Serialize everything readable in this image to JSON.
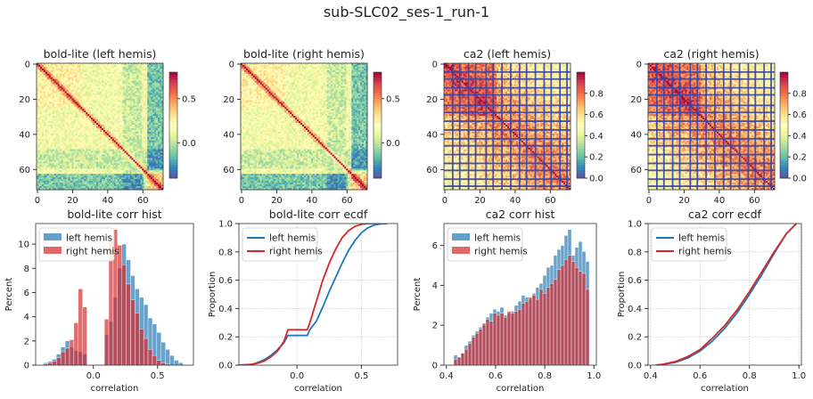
{
  "figure_title": "sub-SLC02_ses-1_run-1",
  "colors": {
    "left": "#1f77b4",
    "right": "#d62728",
    "grid_line": "#3a45a6"
  },
  "chart_data": [
    {
      "type": "heatmap",
      "title": "bold-lite (left hemis)",
      "size": 72,
      "x_ticks": [
        "0",
        "20",
        "40",
        "60"
      ],
      "y_ticks": [
        "0",
        "20",
        "40",
        "60"
      ],
      "colorbar": {
        "range": [
          -0.4,
          0.8
        ],
        "ticks": [
          "0.5",
          "0.0"
        ],
        "colormap": "Spectral_r"
      }
    },
    {
      "type": "heatmap",
      "title": "bold-lite (right hemis)",
      "size": 72,
      "x_ticks": [
        "0",
        "20",
        "40",
        "60"
      ],
      "y_ticks": [
        "0",
        "20",
        "40",
        "60"
      ],
      "colorbar": {
        "range": [
          -0.4,
          0.8
        ],
        "ticks": [
          "0.5",
          "0.0"
        ],
        "colormap": "Spectral_r"
      }
    },
    {
      "type": "heatmap",
      "title": "ca2 (left hemis)",
      "size": 72,
      "x_ticks": [
        "0",
        "20",
        "40",
        "60"
      ],
      "y_ticks": [
        "0",
        "20",
        "40",
        "60"
      ],
      "colorbar": {
        "range": [
          0.0,
          1.0
        ],
        "ticks": [
          "0.8",
          "0.6",
          "0.4",
          "0.2",
          "0.0"
        ],
        "colormap": "Spectral_r"
      }
    },
    {
      "type": "heatmap",
      "title": "ca2 (right hemis)",
      "size": 72,
      "x_ticks": [
        "0",
        "20",
        "40",
        "60"
      ],
      "y_ticks": [
        "0",
        "20",
        "40",
        "60"
      ],
      "colorbar": {
        "range": [
          0.0,
          1.0
        ],
        "ticks": [
          "0.8",
          "0.6",
          "0.4",
          "0.2",
          "0.0"
        ],
        "colormap": "Spectral_r"
      }
    },
    {
      "type": "bar",
      "title": "bold-lite corr hist",
      "xlabel": "correlation",
      "ylabel": "Percent",
      "xlim": [
        -0.45,
        0.78
      ],
      "ylim": [
        0,
        11.7
      ],
      "x_ticks": [
        "0.0",
        "0.5"
      ],
      "y_ticks": [
        "0",
        "2",
        "4",
        "6",
        "8",
        "10"
      ],
      "legend": [
        "left hemis",
        "right hemis"
      ],
      "legend_position": "upper-left",
      "bin_width": 0.034,
      "series": [
        {
          "name": "left hemis",
          "x": [
            -0.39,
            -0.356,
            -0.322,
            -0.288,
            -0.254,
            -0.22,
            -0.186,
            -0.152,
            -0.118,
            -0.084,
            0.086,
            0.12,
            0.154,
            0.188,
            0.222,
            0.256,
            0.29,
            0.324,
            0.358,
            0.392,
            0.426,
            0.46,
            0.494,
            0.528,
            0.562,
            0.596,
            0.63,
            0.664
          ],
          "values": [
            0.2,
            0.3,
            0.5,
            0.9,
            1.5,
            2.0,
            1.5,
            1.2,
            1.1,
            0.9,
            2.5,
            3.6,
            5.6,
            8.0,
            10.0,
            8.7,
            7.4,
            6.3,
            5.6,
            5.0,
            3.9,
            3.4,
            2.7,
            1.9,
            1.3,
            0.8,
            0.4,
            0.2
          ]
        },
        {
          "name": "right hemis",
          "x": [
            -0.39,
            -0.356,
            -0.322,
            -0.288,
            -0.254,
            -0.22,
            -0.186,
            -0.152,
            -0.118,
            -0.084,
            0.086,
            0.12,
            0.154,
            0.188,
            0.222,
            0.256,
            0.29,
            0.324,
            0.358,
            0.392,
            0.426,
            0.46,
            0.494,
            0.528,
            0.562
          ],
          "values": [
            0.1,
            0.2,
            0.3,
            0.6,
            1.1,
            1.4,
            2.1,
            3.5,
            6.3,
            4.8,
            3.8,
            10.3,
            11.2,
            9.9,
            8.3,
            6.7,
            5.4,
            4.3,
            3.0,
            2.2,
            1.3,
            0.8,
            0.4,
            0.2,
            0.1
          ]
        }
      ]
    },
    {
      "type": "line",
      "title": "bold-lite corr ecdf",
      "xlabel": "correlation",
      "ylabel": "Proportion",
      "xlim": [
        -0.45,
        0.78
      ],
      "ylim": [
        0,
        1
      ],
      "x_ticks": [
        "0.0",
        "0.5"
      ],
      "y_ticks": [
        "0.0",
        "0.2",
        "0.4",
        "0.6",
        "0.8",
        "1.0"
      ],
      "legend": [
        "left hemis",
        "right hemis"
      ],
      "legend_position": "upper-left",
      "grid": true,
      "series": [
        {
          "name": "left hemis",
          "x": [
            -0.45,
            -0.35,
            -0.3,
            -0.25,
            -0.2,
            -0.15,
            -0.1,
            -0.07,
            0.08,
            0.1,
            0.15,
            0.2,
            0.25,
            0.3,
            0.35,
            0.4,
            0.45,
            0.5,
            0.55,
            0.6,
            0.65,
            0.7
          ],
          "values": [
            0,
            0.005,
            0.02,
            0.04,
            0.07,
            0.11,
            0.16,
            0.21,
            0.21,
            0.25,
            0.31,
            0.41,
            0.52,
            0.62,
            0.72,
            0.81,
            0.88,
            0.935,
            0.97,
            0.99,
            0.998,
            1.0
          ]
        },
        {
          "name": "right hemis",
          "x": [
            -0.45,
            -0.35,
            -0.3,
            -0.25,
            -0.2,
            -0.15,
            -0.1,
            -0.07,
            0.08,
            0.1,
            0.15,
            0.2,
            0.25,
            0.3,
            0.35,
            0.4,
            0.45,
            0.5,
            0.55,
            0.6
          ],
          "values": [
            0,
            0.005,
            0.015,
            0.03,
            0.06,
            0.1,
            0.17,
            0.25,
            0.25,
            0.3,
            0.45,
            0.6,
            0.72,
            0.82,
            0.9,
            0.95,
            0.98,
            0.995,
            1.0,
            1.0
          ]
        }
      ]
    },
    {
      "type": "bar",
      "title": "ca2 corr hist",
      "xlabel": "correlation",
      "ylabel": "Percent",
      "xlim": [
        0.39,
        1.01
      ],
      "ylim": [
        0,
        7.1
      ],
      "x_ticks": [
        "0.4",
        "0.6",
        "0.8",
        "1.0"
      ],
      "y_ticks": [
        "0",
        "2",
        "4",
        "6"
      ],
      "legend": [
        "left hemis",
        "right hemis"
      ],
      "legend_position": "upper-left",
      "bin_width": 0.0145,
      "series": [
        {
          "name": "left hemis",
          "x": [
            0.43,
            0.4445,
            0.459,
            0.4735,
            0.488,
            0.5025,
            0.517,
            0.5315,
            0.546,
            0.5605,
            0.575,
            0.5895,
            0.604,
            0.6185,
            0.633,
            0.6475,
            0.662,
            0.6765,
            0.691,
            0.7055,
            0.72,
            0.7345,
            0.749,
            0.7635,
            0.778,
            0.7925,
            0.807,
            0.8215,
            0.836,
            0.8505,
            0.865,
            0.8795,
            0.894,
            0.9085,
            0.923,
            0.9375,
            0.952,
            0.9665
          ],
          "values": [
            0.5,
            0.4,
            0.6,
            1.0,
            1.2,
            1.5,
            1.7,
            1.9,
            2.0,
            2.4,
            2.6,
            2.8,
            2.7,
            2.9,
            2.5,
            2.6,
            2.7,
            3.0,
            3.2,
            3.5,
            3.4,
            3.3,
            3.6,
            3.9,
            4.1,
            4.5,
            4.9,
            5.0,
            5.5,
            5.8,
            6.0,
            6.5,
            6.8,
            5.5,
            5.9,
            6.2,
            5.7,
            5.2
          ]
        },
        {
          "name": "right hemis",
          "x": [
            0.43,
            0.4445,
            0.459,
            0.4735,
            0.488,
            0.5025,
            0.517,
            0.5315,
            0.546,
            0.5605,
            0.575,
            0.5895,
            0.604,
            0.6185,
            0.633,
            0.6475,
            0.662,
            0.6765,
            0.691,
            0.7055,
            0.72,
            0.7345,
            0.749,
            0.7635,
            0.778,
            0.7925,
            0.807,
            0.8215,
            0.836,
            0.8505,
            0.865,
            0.8795,
            0.894,
            0.9085,
            0.923,
            0.9375,
            0.952,
            0.9665
          ],
          "values": [
            0.3,
            0.4,
            0.6,
            0.8,
            1.1,
            1.4,
            1.6,
            1.8,
            2.1,
            2.3,
            2.2,
            2.6,
            2.5,
            2.6,
            2.4,
            2.7,
            2.6,
            2.7,
            2.8,
            3.1,
            3.2,
            3.4,
            3.5,
            3.3,
            3.8,
            3.6,
            3.9,
            4.1,
            4.3,
            4.8,
            5.0,
            5.3,
            5.5,
            5.2,
            4.9,
            4.7,
            4.6,
            3.8
          ]
        }
      ]
    },
    {
      "type": "line",
      "title": "ca2 corr ecdf",
      "xlabel": "correlation",
      "ylabel": "Proportion",
      "xlim": [
        0.39,
        1.01
      ],
      "ylim": [
        0,
        1
      ],
      "x_ticks": [
        "0.4",
        "0.6",
        "0.8",
        "1.0"
      ],
      "y_ticks": [
        "0.0",
        "0.2",
        "0.4",
        "0.6",
        "0.8",
        "1.0"
      ],
      "legend": [
        "left hemis",
        "right hemis"
      ],
      "legend_position": "upper-left",
      "grid": true,
      "series": [
        {
          "name": "left hemis",
          "x": [
            0.42,
            0.45,
            0.5,
            0.55,
            0.6,
            0.65,
            0.7,
            0.75,
            0.8,
            0.85,
            0.9,
            0.95,
            0.99
          ],
          "values": [
            0,
            0.005,
            0.02,
            0.05,
            0.1,
            0.17,
            0.26,
            0.37,
            0.5,
            0.64,
            0.79,
            0.93,
            1.0
          ]
        },
        {
          "name": "right hemis",
          "x": [
            0.42,
            0.45,
            0.5,
            0.55,
            0.6,
            0.65,
            0.7,
            0.75,
            0.8,
            0.85,
            0.9,
            0.95,
            0.99
          ],
          "values": [
            0,
            0.006,
            0.025,
            0.06,
            0.11,
            0.19,
            0.28,
            0.39,
            0.52,
            0.66,
            0.8,
            0.93,
            1.0
          ]
        }
      ]
    }
  ]
}
